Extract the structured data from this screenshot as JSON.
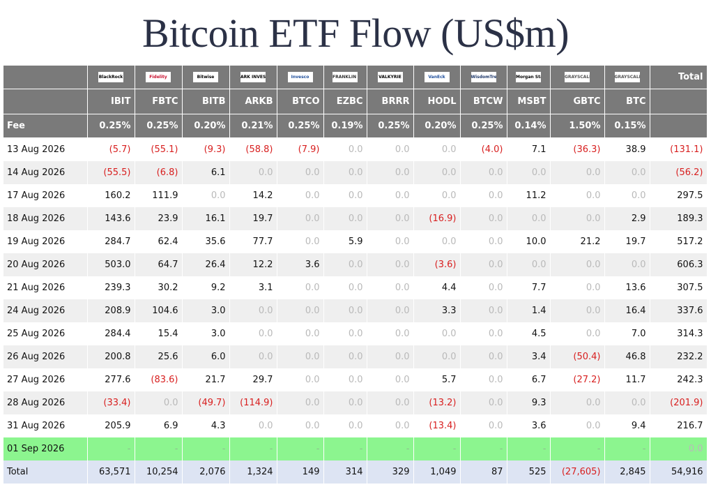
{
  "title": "Bitcoin ETF Flow (US$m)",
  "logos": [
    {
      "ticker": "IBIT",
      "name": "BlackRock",
      "icon": "blackrock-logo",
      "color": "#000000"
    },
    {
      "ticker": "FBTC",
      "name": "Fidelity",
      "icon": "fidelity-logo",
      "color": "#c8102e"
    },
    {
      "ticker": "BITB",
      "name": "Bitwise",
      "icon": "bitwise-logo",
      "color": "#000000"
    },
    {
      "ticker": "ARKB",
      "name": "ARK INVEST",
      "icon": "ark-invest-logo",
      "color": "#000000"
    },
    {
      "ticker": "BTCO",
      "name": "Invesco",
      "icon": "invesco-logo",
      "color": "#1f4f9c"
    },
    {
      "ticker": "EZBC",
      "name": "FRANKLIN TEMPLETON",
      "icon": "franklin-templeton-logo",
      "color": "#333333"
    },
    {
      "ticker": "BRRR",
      "name": "VALKYRIE",
      "icon": "valkyrie-logo",
      "color": "#000000"
    },
    {
      "ticker": "HODL",
      "name": "VanEck",
      "icon": "vaneck-logo",
      "color": "#1f4f9c"
    },
    {
      "ticker": "BTCW",
      "name": "WisdomTree",
      "icon": "wisdomtree-logo",
      "color": "#203a6b"
    },
    {
      "ticker": "MSBT",
      "name": "Morgan Stanley",
      "icon": "morgan-stanley-logo",
      "color": "#000000"
    },
    {
      "ticker": "GBTC",
      "name": "GRAYSCALE",
      "icon": "grayscale-logo",
      "color": "#555555"
    },
    {
      "ticker": "BTC",
      "name": "GRAYSCALE",
      "icon": "grayscale-logo",
      "color": "#555555"
    }
  ],
  "header": {
    "total_label": "Total",
    "fee_label": "Fee",
    "tickers": [
      "IBIT",
      "FBTC",
      "BITB",
      "ARKB",
      "BTCO",
      "EZBC",
      "BRRR",
      "HODL",
      "BTCW",
      "MSBT",
      "GBTC",
      "BTC"
    ],
    "fees": [
      "0.25%",
      "0.25%",
      "0.20%",
      "0.21%",
      "0.25%",
      "0.19%",
      "0.25%",
      "0.20%",
      "0.25%",
      "0.14%",
      "1.50%",
      "0.15%"
    ]
  },
  "colors": {
    "header_bg": "#7a7a7a",
    "negative": "#d81f1f",
    "zero": "#b9b9b9",
    "highlight_row": "#8cf58f",
    "total_row": "#dde4f3"
  },
  "chart_data": {
    "type": "table",
    "title": "Bitcoin ETF Flow (US$m)",
    "columns": [
      "IBIT",
      "FBTC",
      "BITB",
      "ARKB",
      "BTCO",
      "EZBC",
      "BRRR",
      "HODL",
      "BTCW",
      "MSBT",
      "GBTC",
      "BTC",
      "Total"
    ],
    "rows": [
      {
        "date": "13 Aug 2026",
        "values": [
          "(5.7)",
          "(55.1)",
          "(9.3)",
          "(58.8)",
          "(7.9)",
          "0.0",
          "0.0",
          "0.0",
          "(4.0)",
          "7.1",
          "(36.3)",
          "38.9",
          "(131.1)"
        ]
      },
      {
        "date": "14 Aug 2026",
        "values": [
          "(55.5)",
          "(6.8)",
          "6.1",
          "0.0",
          "0.0",
          "0.0",
          "0.0",
          "0.0",
          "0.0",
          "0.0",
          "0.0",
          "0.0",
          "(56.2)"
        ]
      },
      {
        "date": "17 Aug 2026",
        "values": [
          "160.2",
          "111.9",
          "0.0",
          "14.2",
          "0.0",
          "0.0",
          "0.0",
          "0.0",
          "0.0",
          "11.2",
          "0.0",
          "0.0",
          "297.5"
        ]
      },
      {
        "date": "18 Aug 2026",
        "values": [
          "143.6",
          "23.9",
          "16.1",
          "19.7",
          "0.0",
          "0.0",
          "0.0",
          "(16.9)",
          "0.0",
          "0.0",
          "0.0",
          "2.9",
          "189.3"
        ]
      },
      {
        "date": "19 Aug 2026",
        "values": [
          "284.7",
          "62.4",
          "35.6",
          "77.7",
          "0.0",
          "5.9",
          "0.0",
          "0.0",
          "0.0",
          "10.0",
          "21.2",
          "19.7",
          "517.2"
        ]
      },
      {
        "date": "20 Aug 2026",
        "values": [
          "503.0",
          "64.7",
          "26.4",
          "12.2",
          "3.6",
          "0.0",
          "0.0",
          "(3.6)",
          "0.0",
          "0.0",
          "0.0",
          "0.0",
          "606.3"
        ]
      },
      {
        "date": "21 Aug 2026",
        "values": [
          "239.3",
          "30.2",
          "9.2",
          "3.1",
          "0.0",
          "0.0",
          "0.0",
          "4.4",
          "0.0",
          "7.7",
          "0.0",
          "13.6",
          "307.5"
        ]
      },
      {
        "date": "24 Aug 2026",
        "values": [
          "208.9",
          "104.6",
          "3.0",
          "0.0",
          "0.0",
          "0.0",
          "0.0",
          "3.3",
          "0.0",
          "1.4",
          "0.0",
          "16.4",
          "337.6"
        ]
      },
      {
        "date": "25 Aug 2026",
        "values": [
          "284.4",
          "15.4",
          "3.0",
          "0.0",
          "0.0",
          "0.0",
          "0.0",
          "0.0",
          "0.0",
          "4.5",
          "0.0",
          "7.0",
          "314.3"
        ]
      },
      {
        "date": "26 Aug 2026",
        "values": [
          "200.8",
          "25.6",
          "6.0",
          "0.0",
          "0.0",
          "0.0",
          "0.0",
          "0.0",
          "0.0",
          "3.4",
          "(50.4)",
          "46.8",
          "232.2"
        ]
      },
      {
        "date": "27 Aug 2026",
        "values": [
          "277.6",
          "(83.6)",
          "21.7",
          "29.7",
          "0.0",
          "0.0",
          "0.0",
          "5.7",
          "0.0",
          "6.7",
          "(27.2)",
          "11.7",
          "242.3"
        ]
      },
      {
        "date": "28 Aug 2026",
        "values": [
          "(33.4)",
          "0.0",
          "(49.7)",
          "(114.9)",
          "0.0",
          "0.0",
          "0.0",
          "(13.2)",
          "0.0",
          "9.3",
          "0.0",
          "0.0",
          "(201.9)"
        ]
      },
      {
        "date": "31 Aug 2026",
        "values": [
          "205.9",
          "6.9",
          "4.3",
          "0.0",
          "0.0",
          "0.0",
          "0.0",
          "(13.4)",
          "0.0",
          "3.6",
          "0.0",
          "9.4",
          "216.7"
        ]
      },
      {
        "date": "01 Sep 2026",
        "highlight": true,
        "values": [
          "-",
          "-",
          "-",
          "-",
          "-",
          "-",
          "-",
          "-",
          "-",
          "-",
          "-",
          "-",
          "0.0"
        ]
      }
    ],
    "total_row": {
      "label": "Total",
      "values": [
        "63,571",
        "10,254",
        "2,076",
        "1,324",
        "149",
        "314",
        "329",
        "1,049",
        "87",
        "525",
        "(27,605)",
        "2,845",
        "54,916"
      ]
    }
  }
}
